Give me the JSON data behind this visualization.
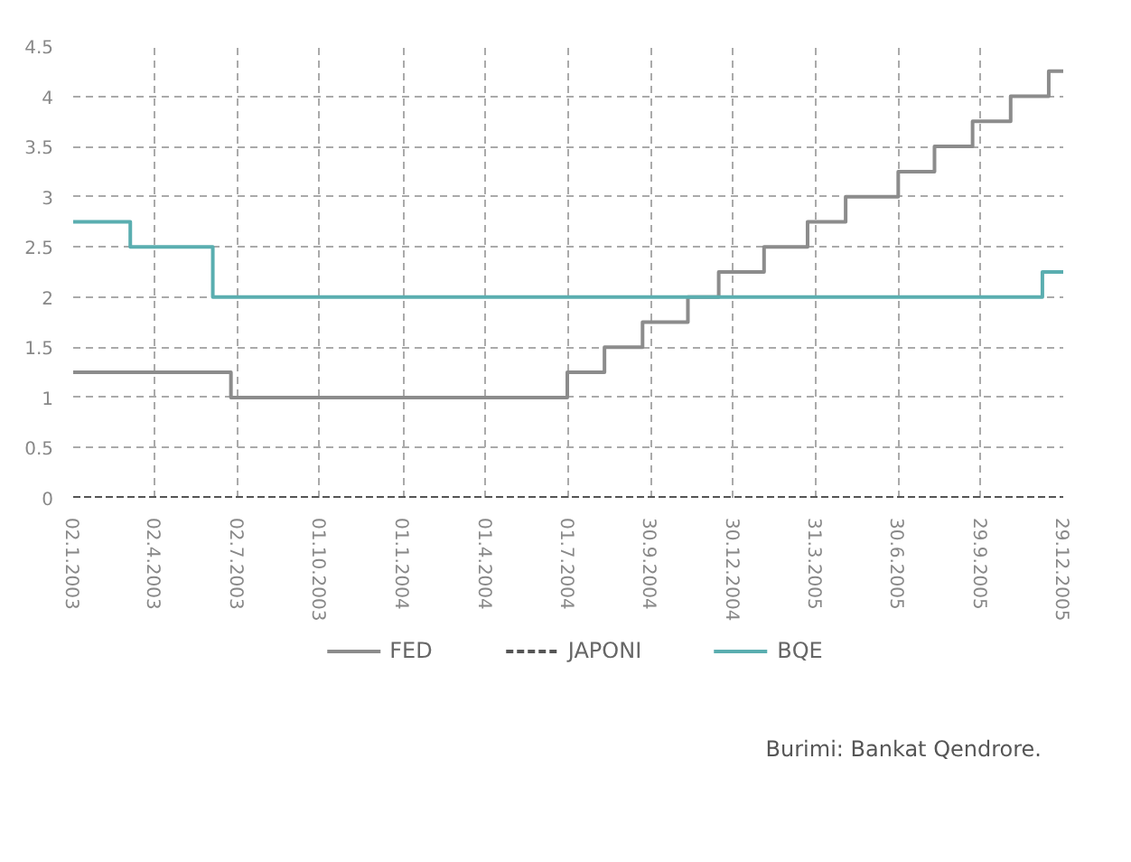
{
  "chart_data": {
    "type": "step",
    "x": [
      "2003-01-02",
      "2003-06-25",
      "2004-06-30",
      "2004-08-10",
      "2004-09-21",
      "2004-11-10",
      "2004-12-14",
      "2005-02-02",
      "2005-03-22",
      "2005-05-03",
      "2005-06-30",
      "2005-08-09",
      "2005-09-20",
      "2005-11-01",
      "2005-12-13",
      "2005-12-29"
    ],
    "series": [
      {
        "name": "FED",
        "color": "#8c8c8c",
        "line_style": "solid",
        "values": [
          1.25,
          1.0,
          1.25,
          1.5,
          1.75,
          2.0,
          2.25,
          2.5,
          2.75,
          3.0,
          3.25,
          3.5,
          3.75,
          4.0,
          4.25,
          4.25
        ]
      },
      {
        "name": "JAPONI",
        "color": "#555555",
        "line_style": "dashed",
        "x": [
          "2003-01-02",
          "2005-12-29"
        ],
        "values": [
          0,
          0
        ]
      },
      {
        "name": "BQE",
        "color": "#5aaeb0",
        "line_style": "solid",
        "x": [
          "2003-01-02",
          "2003-03-06",
          "2003-06-05",
          "2005-12-06",
          "2005-12-29"
        ],
        "values": [
          2.75,
          2.5,
          2.0,
          2.25,
          2.25
        ]
      }
    ],
    "xlim": [
      "2003-01-02",
      "2005-12-29"
    ],
    "xticks": [
      {
        "value": "2003-01-02",
        "label": "02.1.2003"
      },
      {
        "value": "2003-04-02",
        "label": "02.4.2003"
      },
      {
        "value": "2003-07-02",
        "label": "02.7.2003"
      },
      {
        "value": "2003-10-01",
        "label": "01.10.2003"
      },
      {
        "value": "2004-01-01",
        "label": "01.1.2004"
      },
      {
        "value": "2004-04-01",
        "label": "01.4.2004"
      },
      {
        "value": "2004-07-01",
        "label": "01.7.2004"
      },
      {
        "value": "2004-09-30",
        "label": "30.9.2004"
      },
      {
        "value": "2004-12-30",
        "label": "30.12.2004"
      },
      {
        "value": "2005-03-31",
        "label": "31.3.2005"
      },
      {
        "value": "2005-06-30",
        "label": "30.6.2005"
      },
      {
        "value": "2005-09-29",
        "label": "29.9.2005"
      },
      {
        "value": "2005-12-29",
        "label": "29.12.2005"
      }
    ],
    "ylim": [
      0,
      4.5
    ],
    "yticks": [
      0,
      0.5,
      1,
      1.5,
      2,
      2.5,
      3,
      3.5,
      4,
      4.5
    ],
    "grid": true,
    "legend": "bottom",
    "annotations": [
      "Burimi: Bankat Qendrore."
    ]
  }
}
